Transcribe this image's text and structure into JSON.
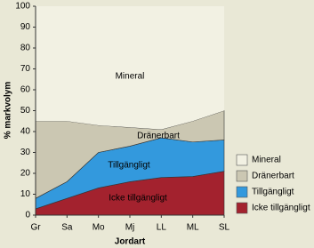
{
  "chart_data": {
    "type": "stacked-area",
    "categories": [
      "Gr",
      "Sa",
      "Mo",
      "Mj",
      "LL",
      "ML",
      "SL"
    ],
    "x_label": "Jordart",
    "y_label": "% markvolym",
    "ylim": [
      0,
      100
    ],
    "yticks": [
      0,
      10,
      20,
      30,
      40,
      50,
      60,
      70,
      80,
      90,
      100
    ],
    "legend": "right",
    "series": [
      {
        "name": "Icke tillgängligt",
        "color": "#a3222e",
        "values": [
          3,
          8,
          13,
          16,
          18,
          18.5,
          21
        ]
      },
      {
        "name": "Tillgängligt",
        "color": "#3399dd",
        "values": [
          5,
          8,
          17,
          17,
          19,
          16.5,
          15
        ]
      },
      {
        "name": "Dränerbart",
        "color": "#cbc7b2",
        "values": [
          37,
          29,
          13,
          9,
          4,
          10,
          14
        ]
      },
      {
        "name": "Mineral",
        "color": "#f2f1e3",
        "values": [
          55,
          55,
          57,
          58,
          59,
          55,
          50
        ]
      }
    ]
  }
}
